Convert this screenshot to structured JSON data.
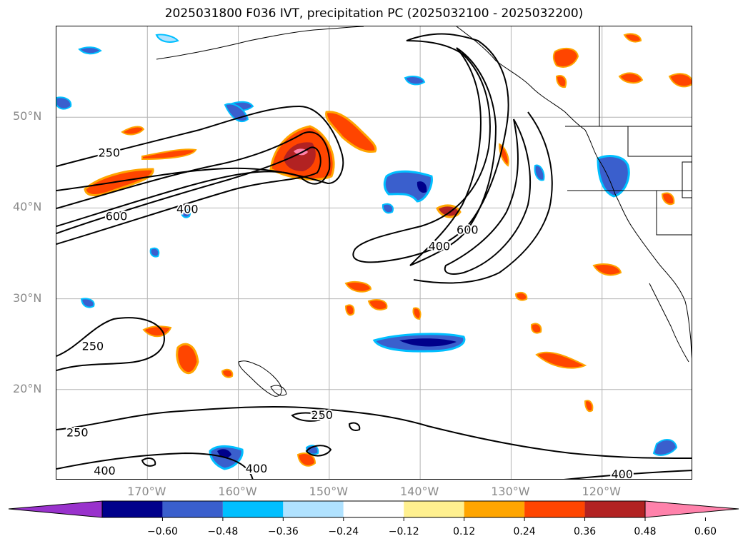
{
  "title": "2025031800 F036 IVT, precipitation PC (2025032100 - 2025032200)",
  "map": {
    "extent": {
      "lon_min": -180,
      "lon_max": -110,
      "lat_min": 10,
      "lat_max": 60
    },
    "lat_labels": [
      {
        "lat": 50,
        "text": "50°N"
      },
      {
        "lat": 40,
        "text": "40°N"
      },
      {
        "lat": 30,
        "text": "30°N"
      },
      {
        "lat": 20,
        "text": "20°N"
      }
    ],
    "lon_labels": [
      {
        "lon": -170,
        "text": "170°W"
      },
      {
        "lon": -160,
        "text": "160°W"
      },
      {
        "lon": -150,
        "text": "150°W"
      },
      {
        "lon": -140,
        "text": "140°W"
      },
      {
        "lon": -130,
        "text": "130°W"
      },
      {
        "lon": -120,
        "text": "120°W"
      }
    ],
    "ivt_contour_labels": [
      {
        "text": "250",
        "lon": -174.2,
        "lat": 46.0
      },
      {
        "text": "600",
        "lon": -173.4,
        "lat": 39.0
      },
      {
        "text": "400",
        "lon": -165.6,
        "lat": 39.8
      },
      {
        "text": "400",
        "lon": -137.9,
        "lat": 35.7
      },
      {
        "text": "600",
        "lon": -134.8,
        "lat": 37.5
      },
      {
        "text": "250",
        "lon": -176.0,
        "lat": 24.7
      },
      {
        "text": "250",
        "lon": -150.8,
        "lat": 17.1
      },
      {
        "text": "250",
        "lon": -177.7,
        "lat": 15.2
      },
      {
        "text": "400",
        "lon": -174.7,
        "lat": 11.0
      },
      {
        "text": "400",
        "lon": -158.0,
        "lat": 11.2
      },
      {
        "text": "400",
        "lon": -117.8,
        "lat": 10.6
      }
    ]
  },
  "colorbar": {
    "colors": [
      "#9932cc",
      "#00008b",
      "#3a5fcd",
      "#00bfff",
      "#b0e2ff",
      "#ffffff",
      "#fff08f",
      "#ffa500",
      "#ff4500",
      "#b22222",
      "#ff82ab"
    ],
    "ticks": [
      "−0.60",
      "−0.48",
      "−0.36",
      "−0.24",
      "−0.12",
      "0.12",
      "0.24",
      "0.36",
      "0.48",
      "0.60"
    ],
    "extend": "both"
  }
}
